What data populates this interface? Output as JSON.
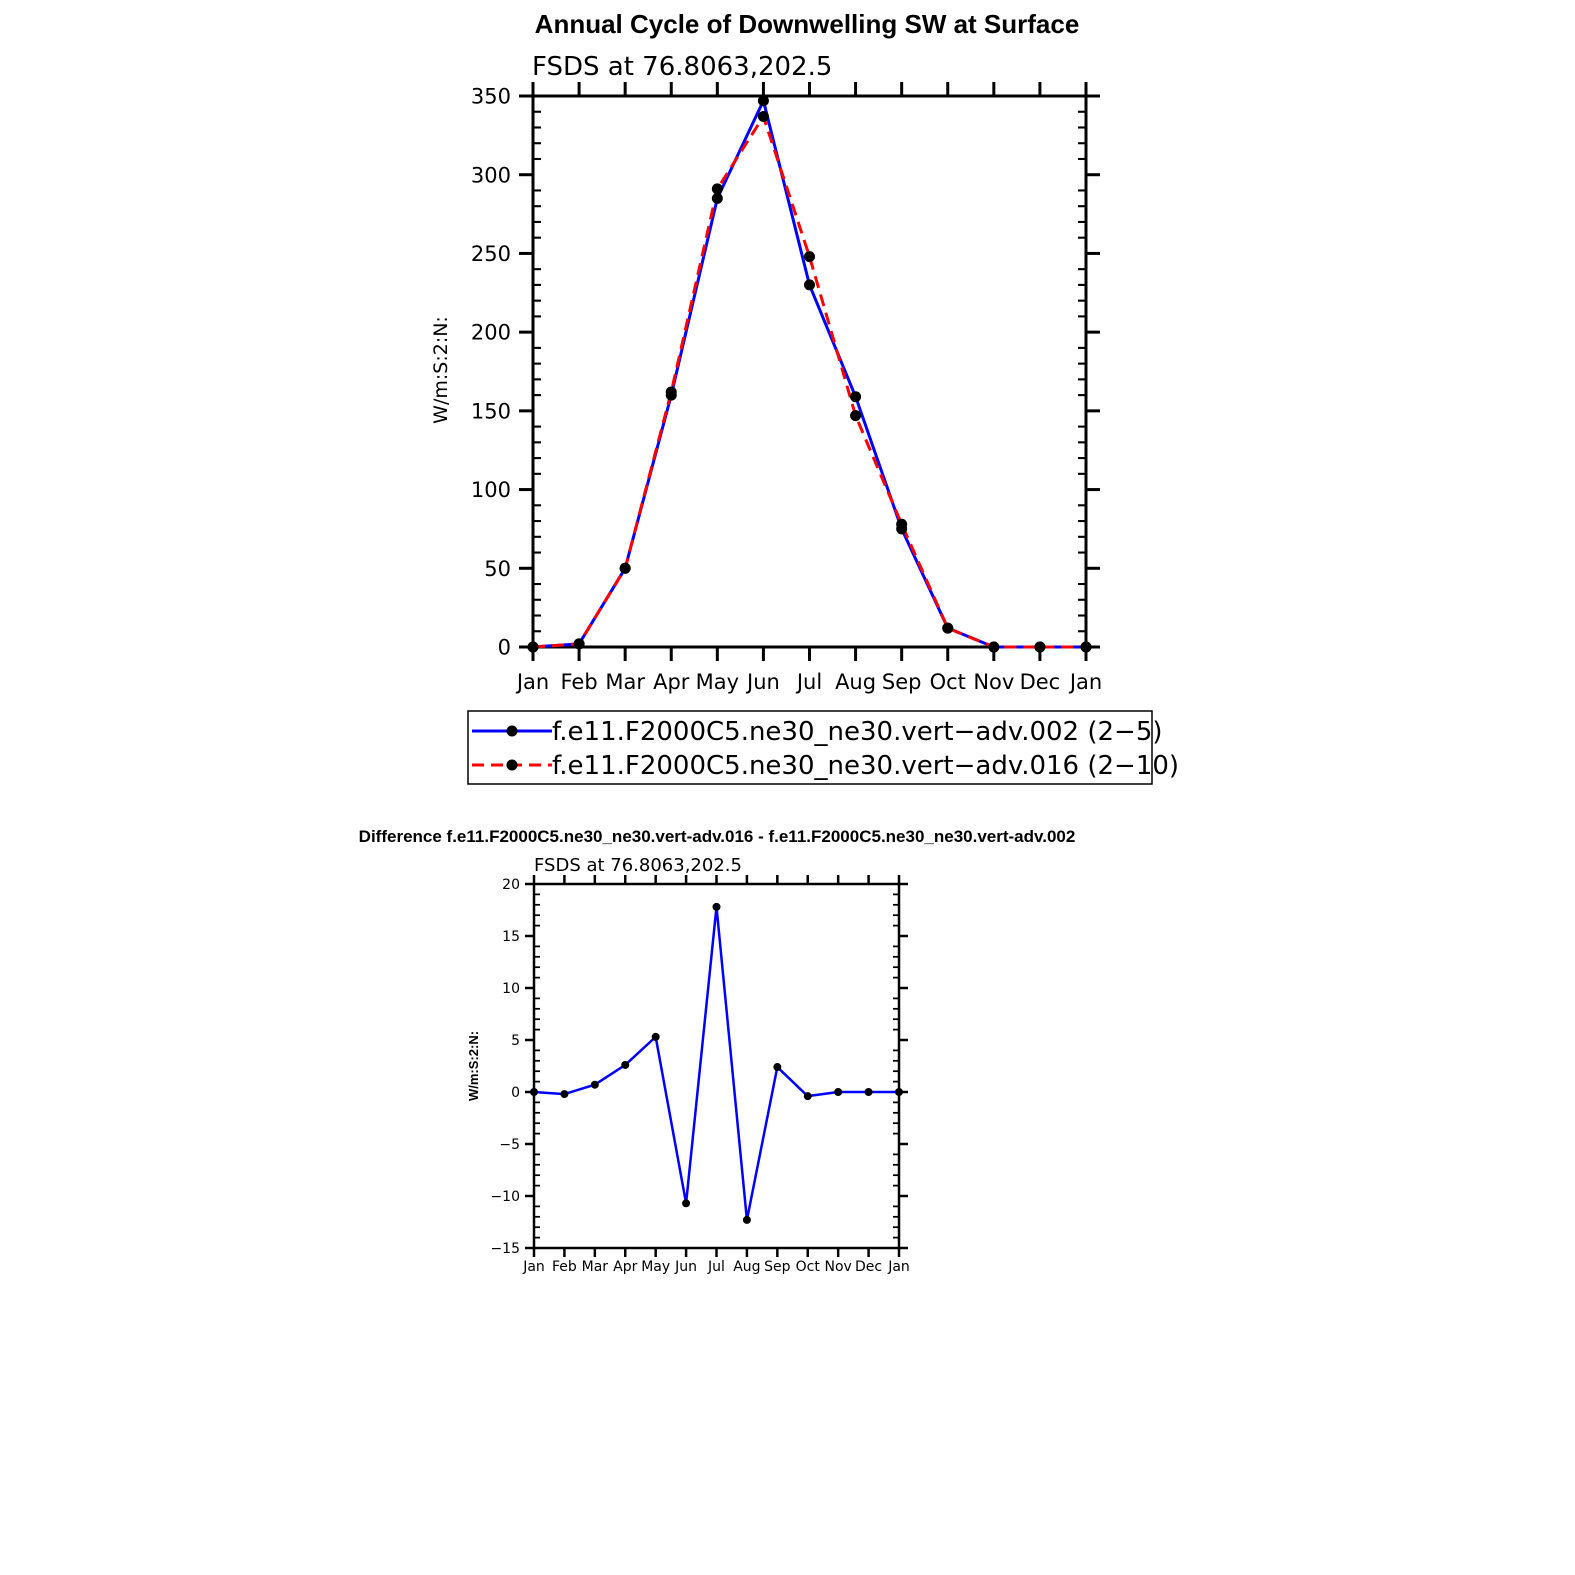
{
  "chart_data": [
    {
      "type": "line",
      "title": "Annual Cycle of Downwelling SW at Surface",
      "subtitle": "FSDS at 76.8063,202.5",
      "xlabel": "",
      "ylabel": "W/m:S:2:N:",
      "categories": [
        "Jan",
        "Feb",
        "Mar",
        "Apr",
        "May",
        "Jun",
        "Jul",
        "Aug",
        "Sep",
        "Oct",
        "Nov",
        "Dec",
        "Jan"
      ],
      "ylim": [
        0,
        350
      ],
      "yticks": [
        "0",
        "50",
        "100",
        "150",
        "200",
        "250",
        "300",
        "350"
      ],
      "grid": false,
      "legend": "below",
      "series": [
        {
          "name": "f.e11.F2000C5.ne30_ne30.vert−adv.002 (2−5)",
          "color": "#0000ff",
          "dash": "solid",
          "values": [
            0,
            2,
            50,
            160,
            285,
            347,
            230,
            159,
            75,
            12,
            0,
            0,
            0
          ]
        },
        {
          "name": "f.e11.F2000C5.ne30_ne30.vert−adv.016 (2−10)",
          "color": "#ff0000",
          "dash": "dashed",
          "values": [
            0,
            2,
            50,
            162,
            291,
            337,
            248,
            147,
            78,
            12,
            0,
            0,
            0
          ]
        }
      ]
    },
    {
      "type": "line",
      "title": "Difference f.e11.F2000C5.ne30_ne30.vert-adv.016 - f.e11.F2000C5.ne30_ne30.vert-adv.002",
      "subtitle": "FSDS at 76.8063,202.5",
      "xlabel": "",
      "ylabel": "W/m:S:2:N:",
      "categories": [
        "Jan",
        "Feb",
        "Mar",
        "Apr",
        "May",
        "Jun",
        "Jul",
        "Aug",
        "Sep",
        "Oct",
        "Nov",
        "Dec",
        "Jan"
      ],
      "ylim": [
        -15,
        20
      ],
      "yticks": [
        "−15",
        "−10",
        "−5",
        "0",
        "5",
        "10",
        "15",
        "20"
      ],
      "grid": false,
      "series": [
        {
          "color": "#0000ff",
          "dash": "solid",
          "values": [
            0,
            -0.2,
            0.7,
            2.6,
            5.3,
            -10.7,
            17.8,
            -12.3,
            2.4,
            -0.4,
            0,
            0,
            0
          ]
        }
      ]
    }
  ]
}
